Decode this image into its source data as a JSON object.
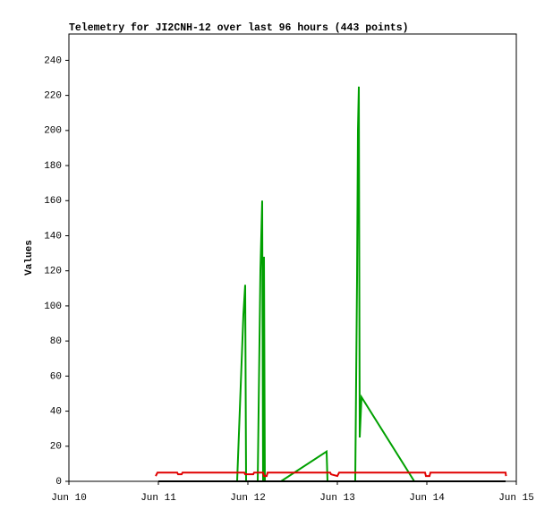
{
  "chart_data": {
    "type": "line",
    "title": "Telemetry for JI2CNH-12 over last 96 hours (443 points)",
    "y_label": "Values",
    "xlim": [
      10,
      15
    ],
    "xticks": [
      {
        "value": 10,
        "label": "Jun 10"
      },
      {
        "value": 11,
        "label": "Jun 11"
      },
      {
        "value": 12,
        "label": "Jun 12"
      },
      {
        "value": 13,
        "label": "Jun 13"
      },
      {
        "value": 14,
        "label": "Jun 14"
      },
      {
        "value": 15,
        "label": "Jun 15"
      }
    ],
    "ylim": [
      0,
      255
    ],
    "yticks": [
      0,
      20,
      40,
      60,
      80,
      100,
      120,
      140,
      160,
      180,
      200,
      220,
      240
    ],
    "grid": false,
    "series": [
      {
        "color": "#00a000",
        "x": [
          11.88,
          11.95,
          11.97,
          11.98,
          12.11,
          12.14,
          12.16,
          12.17,
          12.18,
          12.19,
          12.37,
          12.88,
          12.89,
          13.2,
          13.22,
          13.23,
          13.24,
          13.25,
          13.27,
          13.86
        ],
        "values": [
          0,
          95,
          112,
          0,
          0,
          120,
          160,
          0,
          128,
          0,
          0,
          17,
          0,
          0,
          115,
          200,
          225,
          25,
          48,
          0
        ]
      },
      {
        "color": "#000000",
        "x": [
          11.0,
          14.88
        ],
        "values": [
          0,
          0
        ]
      },
      {
        "color": "#e00000",
        "x": [
          10.97,
          10.99,
          11.21,
          11.22,
          11.26,
          11.27,
          11.96,
          11.97,
          12.06,
          12.07,
          12.17,
          12.18,
          12.21,
          12.22,
          12.92,
          12.93,
          13.0,
          13.02,
          13.98,
          13.99,
          14.03,
          14.04,
          14.88,
          14.885
        ],
        "values": [
          3,
          5,
          5,
          4,
          4,
          5,
          5,
          4,
          4,
          5,
          5,
          3,
          3,
          5,
          5,
          4,
          3,
          5,
          5,
          3,
          3,
          5,
          5,
          3
        ]
      }
    ]
  }
}
